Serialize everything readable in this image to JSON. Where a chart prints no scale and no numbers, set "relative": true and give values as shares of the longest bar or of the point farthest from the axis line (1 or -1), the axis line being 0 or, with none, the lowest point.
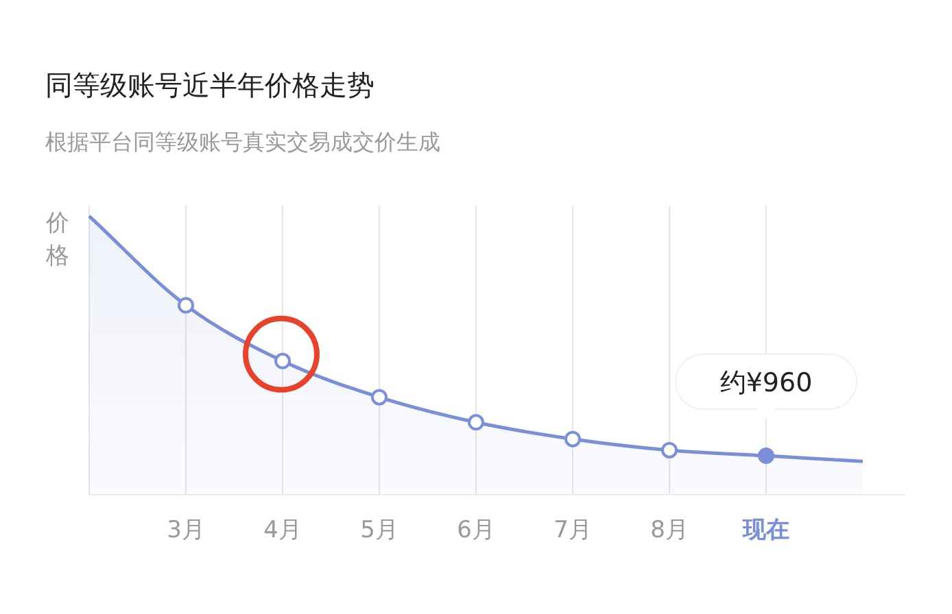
{
  "chart_data": {
    "type": "area",
    "title": "同等级账号近半年价格走势",
    "subtitle": "根据平台同等级账号真实交易成交价生成",
    "ylabel": "价格",
    "relative": true,
    "categories": [
      null,
      "3月",
      "4月",
      "5月",
      "6月",
      "7月",
      "8月",
      "现在",
      null
    ],
    "grid": "x",
    "series": [
      {
        "color": "#7b8fd9",
        "values": [
          1,
          0.68,
          0.48,
          0.35,
          0.26,
          0.2,
          0.16,
          0.14,
          0.12
        ]
      },
      {
        "type": "scatter",
        "marker": "circle",
        "color": "#7b8fd9",
        "x": [
          "3月",
          "4月",
          "5月",
          "6月",
          "7月",
          "8月",
          "现在"
        ],
        "values": [
          0.68,
          0.48,
          0.35,
          0.26,
          0.2,
          0.16,
          0.14
        ],
        "colors": [
          "#ffffff",
          "#ffffff",
          "#ffffff",
          "#ffffff",
          "#ffffff",
          "#ffffff",
          "#7b8fd9"
        ]
      }
    ],
    "annotations": [
      {
        "text": "约¥960",
        "x": "现在",
        "y": 0.14
      }
    ]
  }
}
